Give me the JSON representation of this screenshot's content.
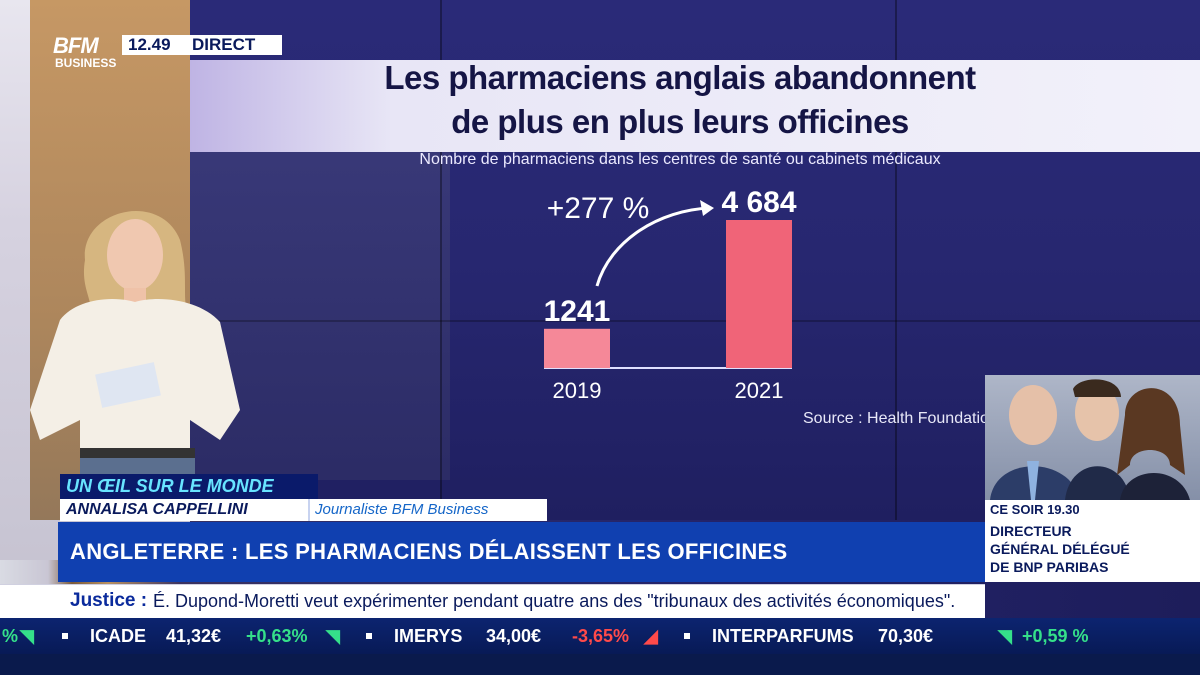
{
  "broadcast": {
    "logo_main": "BFM",
    "logo_sub": "BUSINESS",
    "time": "12.49",
    "live_label": "DIRECT"
  },
  "chart_data": {
    "type": "bar",
    "title_line1": "Les pharmaciens anglais abandonnent",
    "title_line2": "de plus en plus leurs officines",
    "subtitle": "Nombre de pharmaciens dans les centres de santé ou cabinets médicaux",
    "categories": [
      "2019",
      "2021"
    ],
    "values": [
      1241,
      4684
    ],
    "value_labels": [
      "1241",
      "4 684"
    ],
    "annotation": "+277 %",
    "source": "Source : Health Foundation",
    "colors": {
      "bar": "#f06478",
      "bar_light": "#f58898",
      "text": "#ffffff"
    }
  },
  "lower_third": {
    "segment": "UN ŒIL SUR LE MONDE",
    "name": "ANNALISA CAPPELLINI",
    "role": "Journaliste BFM Business",
    "headline": "ANGLETERRE : LES PHARMACIENS DÉLAISSENT LES OFFICINES"
  },
  "tonight": {
    "time": "CE SOIR 19.30",
    "line1": "DIRECTEUR",
    "line2": "GÉNÉRAL DÉLÉGUÉ",
    "line3": "DE BNP PARIBAS"
  },
  "news_ticker": {
    "label": "Justice :",
    "text": "É. Dupond-Moretti veut expérimenter pendant quatre ans des \"tribunaux des activités économiques\"."
  },
  "stocks": [
    {
      "name": "",
      "value": "",
      "change": "%",
      "direction": "up"
    },
    {
      "name": "ICADE",
      "value": "41,32€",
      "change": "+0,63%",
      "direction": "up"
    },
    {
      "name": "IMERYS",
      "value": "34,00€",
      "change": "-3,65%",
      "direction": "down"
    },
    {
      "name": "INTERPARFUMS",
      "value": "70,30€",
      "change": "+0,59 %",
      "direction": "up"
    }
  ]
}
